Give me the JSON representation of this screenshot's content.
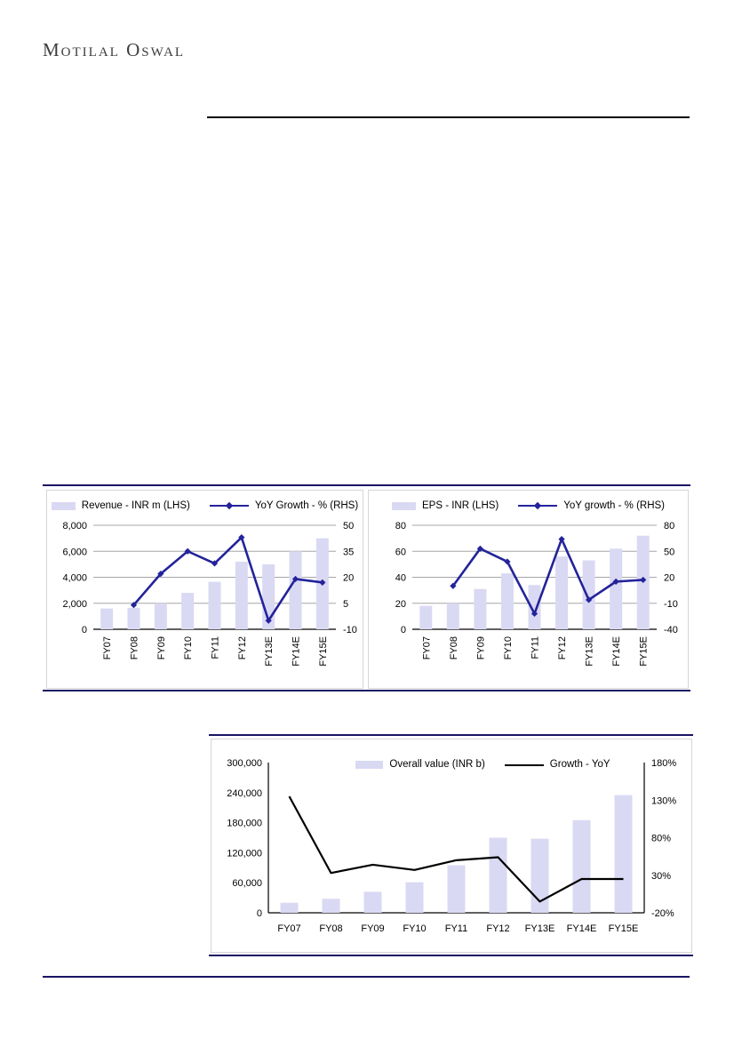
{
  "page": {
    "logo": "Motilal Oswal"
  },
  "colors": {
    "bar_fill": "#dad9f3",
    "line_navy": "#23239b",
    "line_black": "#000000",
    "rule_navy": "#1a1464",
    "rule_black": "#000000",
    "gridline": "#a6a6a6",
    "panel_border": "#d6d6d6"
  },
  "chart_data": [
    {
      "id": "revenue_chart",
      "type": "bar",
      "title": "",
      "categories": [
        "FY07",
        "FY08",
        "FY09",
        "FY10",
        "FY11",
        "FY12",
        "FY13E",
        "FY14E",
        "FY15E"
      ],
      "series": [
        {
          "name": "Revenue - INR m (LHS)",
          "type": "bar",
          "axis": "left",
          "color": "#dad9f3",
          "values": [
            1600,
            1650,
            2000,
            2800,
            3650,
            5200,
            5000,
            6000,
            7000
          ]
        },
        {
          "name": "YoY Growth - % (RHS)",
          "type": "line",
          "axis": "right",
          "color": "#23239b",
          "marker": "diamond",
          "values": [
            null,
            4,
            22,
            35,
            28,
            43,
            -5,
            19,
            17
          ]
        }
      ],
      "left_axis": {
        "range": [
          0,
          8000
        ],
        "ticks": [
          "8,000",
          "6,000",
          "4,000",
          "2,000",
          "0"
        ]
      },
      "right_axis": {
        "range": [
          -10,
          50
        ],
        "ticks": [
          "50",
          "35",
          "20",
          "5",
          "-10"
        ]
      },
      "grid": true,
      "frame": false,
      "legend_position": "top",
      "x_labels_rotated": true
    },
    {
      "id": "eps_chart",
      "type": "bar",
      "title": "",
      "categories": [
        "FY07",
        "FY08",
        "FY09",
        "FY10",
        "FY11",
        "FY12",
        "FY13E",
        "FY14E",
        "FY15E"
      ],
      "series": [
        {
          "name": "EPS - INR (LHS)",
          "type": "bar",
          "axis": "left",
          "color": "#dad9f3",
          "values": [
            18,
            20,
            31,
            43,
            34,
            56,
            53,
            62,
            72
          ]
        },
        {
          "name": "YoY growth - % (RHS)",
          "type": "line",
          "axis": "right",
          "color": "#23239b",
          "marker": "diamond",
          "values": [
            null,
            10,
            53,
            38,
            -22,
            64,
            -6,
            15,
            17
          ]
        }
      ],
      "left_axis": {
        "range": [
          0,
          80
        ],
        "ticks": [
          "80",
          "60",
          "40",
          "20",
          "0"
        ]
      },
      "right_axis": {
        "range": [
          -40,
          80
        ],
        "ticks": [
          "80",
          "50",
          "20",
          "-10",
          "-40"
        ]
      },
      "grid": true,
      "frame": false,
      "legend_position": "top",
      "x_labels_rotated": true
    },
    {
      "id": "overall_value_chart",
      "type": "bar",
      "title": "",
      "categories": [
        "FY07",
        "FY08",
        "FY09",
        "FY10",
        "FY11",
        "FY12",
        "FY13E",
        "FY14E",
        "FY15E"
      ],
      "series": [
        {
          "name": "Overall value (INR b)",
          "type": "bar",
          "axis": "left",
          "color": "#dad9f3",
          "values": [
            20000,
            28000,
            42000,
            61000,
            95000,
            150000,
            148000,
            185000,
            235000
          ]
        },
        {
          "name": "Growth - YoY",
          "type": "line",
          "axis": "right",
          "color": "#000000",
          "marker": "none",
          "values": [
            135,
            33,
            44,
            37,
            50,
            54,
            -5,
            25,
            25
          ]
        }
      ],
      "left_axis": {
        "range": [
          0,
          300000
        ],
        "ticks": [
          "300,000",
          "240,000",
          "180,000",
          "120,000",
          "60,000",
          "0"
        ]
      },
      "right_axis": {
        "range": [
          -20,
          180
        ],
        "ticks": [
          "180%",
          "130%",
          "80%",
          "30%",
          "-20%"
        ]
      },
      "grid": false,
      "frame": true,
      "legend_position": "top-inside",
      "x_labels_rotated": false
    }
  ]
}
